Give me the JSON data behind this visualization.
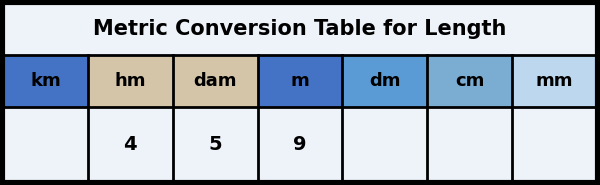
{
  "title": "Metric Conversion Table for Length",
  "headers": [
    "km",
    "hm",
    "dam",
    "m",
    "dm",
    "cm",
    "mm"
  ],
  "values": [
    "",
    "4",
    "5",
    "9",
    "",
    "",
    ""
  ],
  "header_colors": [
    "#4472C4",
    "#D4C5A9",
    "#D4C5A9",
    "#4472C4",
    "#5B9BD5",
    "#7BADD3",
    "#BDD7EE"
  ],
  "value_bg_color": "#EEF3FA",
  "title_bg_color": "#EEF3FA",
  "outer_bg_color": "#000000",
  "border_color": "#000000",
  "title_fontsize": 15,
  "header_fontsize": 13,
  "value_fontsize": 14,
  "fig_width": 6.0,
  "fig_height": 1.85,
  "dpi": 100
}
